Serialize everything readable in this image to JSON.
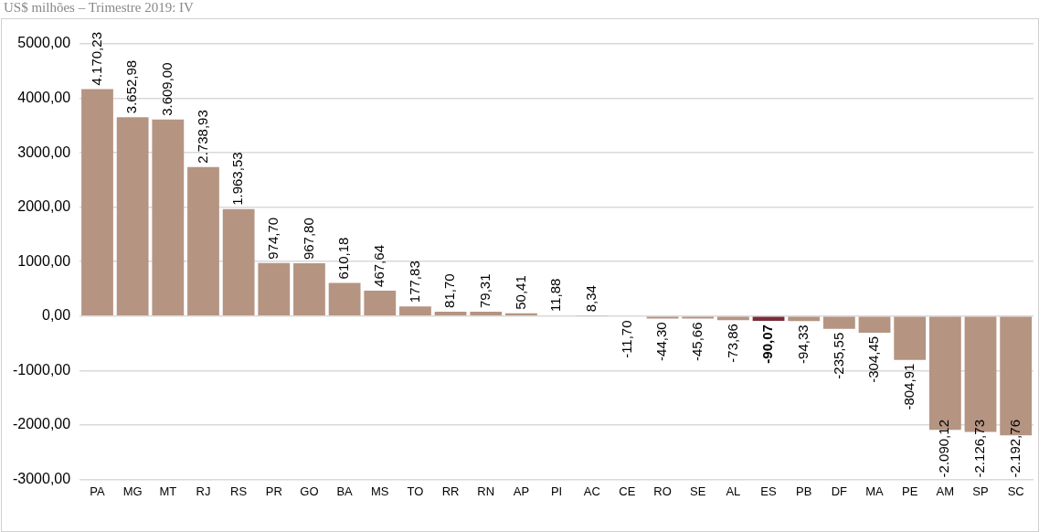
{
  "chart_data": {
    "type": "bar",
    "title": "US$ milhões – Trimestre 2019: IV",
    "categories": [
      "PA",
      "MG",
      "MT",
      "RJ",
      "RS",
      "PR",
      "GO",
      "BA",
      "MS",
      "TO",
      "RR",
      "RN",
      "AP",
      "PI",
      "AC",
      "CE",
      "RO",
      "SE",
      "AL",
      "ES",
      "PB",
      "DF",
      "MA",
      "PE",
      "AM",
      "SP",
      "SC"
    ],
    "values": [
      4170.23,
      3652.98,
      3609.0,
      2738.93,
      1963.53,
      974.7,
      967.8,
      610.18,
      467.64,
      177.83,
      81.7,
      79.31,
      50.41,
      11.88,
      8.34,
      -11.7,
      -44.3,
      -45.66,
      -73.86,
      -90.07,
      -94.33,
      -235.55,
      -304.45,
      -804.91,
      -2090.12,
      -2126.73,
      -2192.76
    ],
    "value_labels": [
      "4.170,23",
      "3.652,98",
      "3.609,00",
      "2.738,93",
      "1.963,53",
      "974,70",
      "967,80",
      "610,18",
      "467,64",
      "177,83",
      "81,70",
      "79,31",
      "50,41",
      "11,88",
      "8,34",
      "-11,70",
      "-44,30",
      "-45,66",
      "-73,86",
      "-90,07",
      "-94,33",
      "-235,55",
      "-304,45",
      "-804,91",
      "-2.090,12",
      "-2.126,73",
      "-2.192,76"
    ],
    "colors": [
      "#b59482",
      "#b59482",
      "#b59482",
      "#b59482",
      "#b59482",
      "#b59482",
      "#b59482",
      "#b59482",
      "#b59482",
      "#b59482",
      "#b59482",
      "#b59482",
      "#b59482",
      "#b59482",
      "#b59482",
      "#b59482",
      "#b59482",
      "#b59482",
      "#b59482",
      "#7b2c3a",
      "#b59482",
      "#b59482",
      "#b59482",
      "#b59482",
      "#b59482",
      "#b59482",
      "#b59482"
    ],
    "ylim": [
      -3000,
      5000
    ],
    "yticks": [
      {
        "value": -3000,
        "label": "-3000,00"
      },
      {
        "value": -2000,
        "label": "-2000,00"
      },
      {
        "value": -1000,
        "label": "-1000,00"
      },
      {
        "value": 0,
        "label": "0,00"
      },
      {
        "value": 1000,
        "label": "1000,00"
      },
      {
        "value": 2000,
        "label": "2000,00"
      },
      {
        "value": 3000,
        "label": "3000,00"
      },
      {
        "value": 4000,
        "label": "4000,00"
      },
      {
        "value": 5000,
        "label": "5000,00"
      }
    ],
    "grid": "y",
    "legend": false
  }
}
